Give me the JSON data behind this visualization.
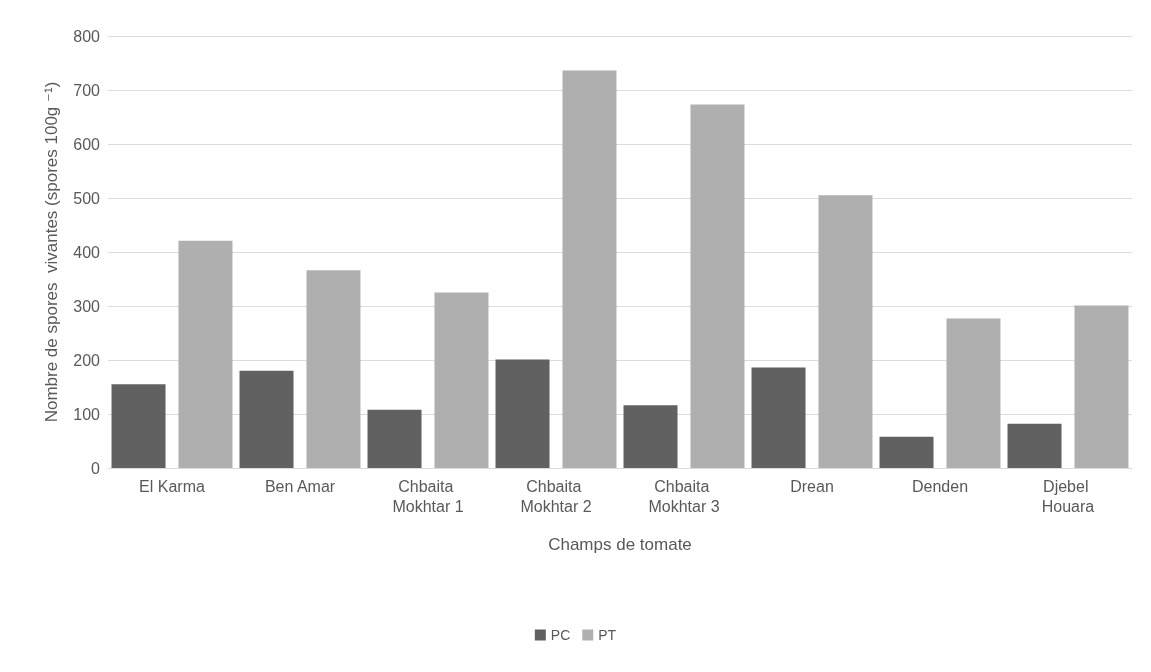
{
  "chart_data": {
    "type": "bar",
    "xlabel": "Champs de tomate",
    "ylabel": "Nombre de spores  vivantes (spores 100g ⁻¹)",
    "categories": [
      "El Karma",
      "Ben Amar",
      "Chbaita Mokhtar 1",
      "Chbaita Mokhtar 2",
      "Chbaita Mokhtar 3",
      "Drean",
      "Denden",
      "Djebel Houara"
    ],
    "series": [
      {
        "name": "PC",
        "color": "#616161",
        "values": [
          155,
          180,
          108,
          201,
          116,
          186,
          58,
          82
        ]
      },
      {
        "name": "PT",
        "color": "#afafaf",
        "values": [
          421,
          366,
          325,
          736,
          673,
          505,
          277,
          301
        ]
      }
    ],
    "ylim": [
      0,
      800
    ],
    "yticks": [
      0,
      100,
      200,
      300,
      400,
      500,
      600,
      700,
      800
    ],
    "grid": "y",
    "legend": "bottom"
  }
}
